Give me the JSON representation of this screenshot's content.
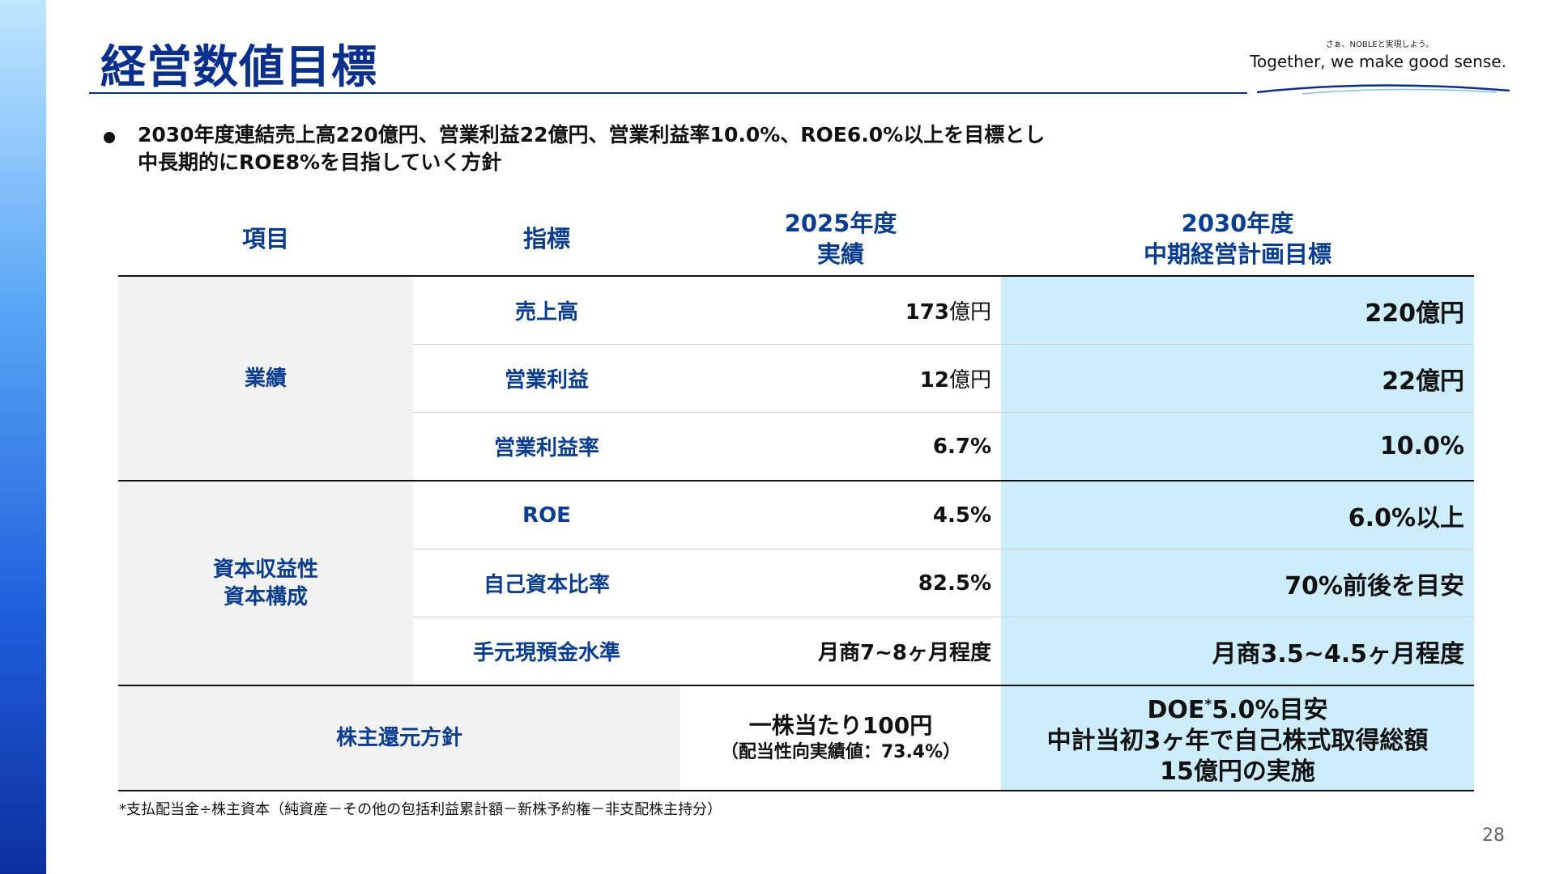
{
  "slide": {
    "title": "経営数値目標",
    "logo": {
      "tagline_small": "さぁ、NOBLEと実現しよう。",
      "tagline_main": "Together, we make good sense."
    },
    "lead_lines": [
      "2030年度連結売上高220億円、営業利益22億円、営業利益率10.0%、ROE6.0%以上を目標とし",
      "中長期的にROE8%を目指していく方針"
    ],
    "table": {
      "headers": {
        "item": "項目",
        "indicator": "指標",
        "actual_line1": "2025年度",
        "actual_line2": "実績",
        "target_line1": "2030年度",
        "target_line2": "中期経営計画目標"
      },
      "group1": {
        "category": "業績",
        "rows": [
          {
            "indicator": "売上高",
            "actual_num": "173",
            "actual_unit": "億円",
            "target": "220億円"
          },
          {
            "indicator": "営業利益",
            "actual_num": "12",
            "actual_unit": "億円",
            "target": "22億円"
          },
          {
            "indicator": "営業利益率",
            "actual_num": "6.7%",
            "actual_unit": "",
            "target": "10.0%"
          }
        ]
      },
      "group2": {
        "category_line1": "資本収益性",
        "category_line2": "資本構成",
        "rows": [
          {
            "indicator": "ROE",
            "actual_num": "4.5%",
            "actual_unit": "",
            "target": "6.0%以上"
          },
          {
            "indicator": "自己資本比率",
            "actual_num": "82.5%",
            "actual_unit": "",
            "target": "70%前後を目安"
          },
          {
            "indicator": "手元現預金水準",
            "actual_num": "月商7~8ヶ月程度",
            "actual_unit": "",
            "target": "月商3.5~4.5ヶ月程度"
          }
        ]
      },
      "shareholder": {
        "category": "株主還元方針",
        "actual_line1": "一株当たり100円",
        "actual_line2": "（配当性向実績値：73.4%）",
        "target_line1_a": "DOE",
        "target_line1_sup": "*",
        "target_line1_b": "5.0%目安",
        "target_line2": "中計当初3ヶ年で自己株式取得総額",
        "target_line3": "15億円の実施"
      }
    },
    "footnote": "*支払配当金÷株主資本（純資産－その他の包括利益累計額－新株予約権－非支配株主持分）",
    "page_number": "28"
  }
}
